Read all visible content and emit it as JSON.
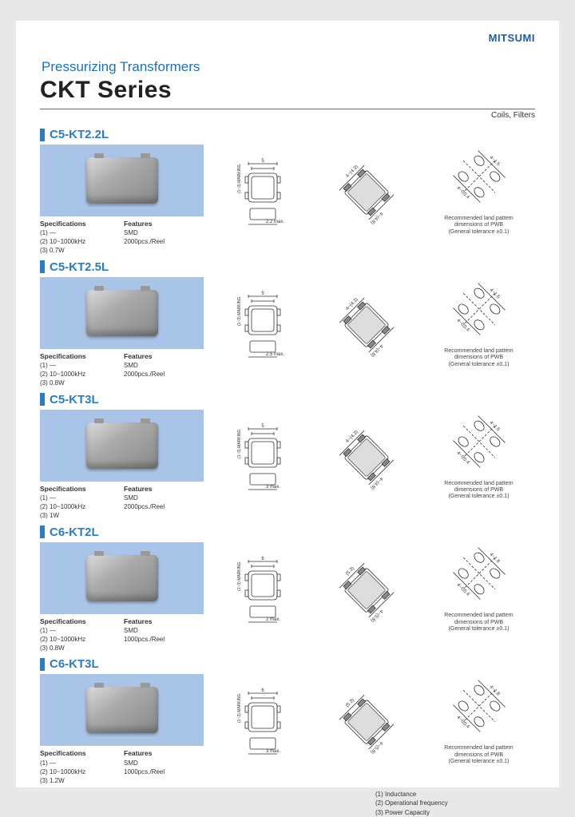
{
  "brand": "MITSUMI",
  "header": {
    "subtitle": "Pressurizing Transformers",
    "title": "CKT Series",
    "category": "Coils, Filters"
  },
  "colors": {
    "accent": "#2a7cc4",
    "photo_bg": "#a8c4e6",
    "page_bg": "#ffffff"
  },
  "drawing_caption": {
    "line1": "Recommended land pattern",
    "line2": "dimensions of PWB",
    "line3": "(General tolerance ±0.1)"
  },
  "labels": {
    "specifications": "Specifications",
    "features": "Features"
  },
  "products": [
    {
      "part": "C5-KT2.2L",
      "specs": [
        "(1) —",
        "(2) 10~1000kHz",
        "(3) 0.7W"
      ],
      "features": [
        "SMD",
        "2000pcs./Reel"
      ],
      "dims": {
        "body": "5",
        "height_label": "2.2 max.",
        "pad_a": "4~(4.3)",
        "pad_b": "4~(4.8)",
        "land_a": "4~C0.4",
        "land_b": "4~1.5"
      }
    },
    {
      "part": "C5-KT2.5L",
      "specs": [
        "(1) —",
        "(2) 10~1000kHz",
        "(3) 0.8W"
      ],
      "features": [
        "SMD",
        "2000pcs./Reel"
      ],
      "dims": {
        "body": "5",
        "height_label": "2.5 max.",
        "pad_a": "4~(4.3)",
        "pad_b": "4~(4.8)",
        "land_a": "4~C0.4",
        "land_b": "4~1.5"
      }
    },
    {
      "part": "C5-KT3L",
      "specs": [
        "(1) —",
        "(2) 10~1000kHz",
        "(3) 1W"
      ],
      "features": [
        "SMD",
        "2000pcs./Reel"
      ],
      "dims": {
        "body": "5",
        "height_label": "3 max.",
        "pad_a": "4~(4.3)",
        "pad_b": "4~(4.8)",
        "land_a": "4~C0.4",
        "land_b": "4~1.5"
      }
    },
    {
      "part": "C6-KT2L",
      "specs": [
        "(1) —",
        "(2) 10~1000kHz",
        "(3) 0.8W"
      ],
      "features": [
        "SMD",
        "1000pcs./Reel"
      ],
      "dims": {
        "body": "6",
        "height_label": "2 max.",
        "pad_a": "(5.3)",
        "pad_b": "4~(5.8)",
        "land_a": "4~C0.4",
        "land_b": "4~1.8"
      }
    },
    {
      "part": "C6-KT3L",
      "specs": [
        "(1) —",
        "(2) 10~1000kHz",
        "(3) 1.2W"
      ],
      "features": [
        "SMD",
        "1000pcs./Reel"
      ],
      "dims": {
        "body": "6",
        "height_label": "3 max.",
        "pad_a": "(5.3)",
        "pad_b": "4~(5.8)",
        "land_a": "4~C0.4",
        "land_b": "4~1.8"
      }
    }
  ],
  "footer": {
    "n1": "(1) Inductance",
    "n2": "(2) Operational frequency",
    "n3": "(3) Power Capacity"
  }
}
